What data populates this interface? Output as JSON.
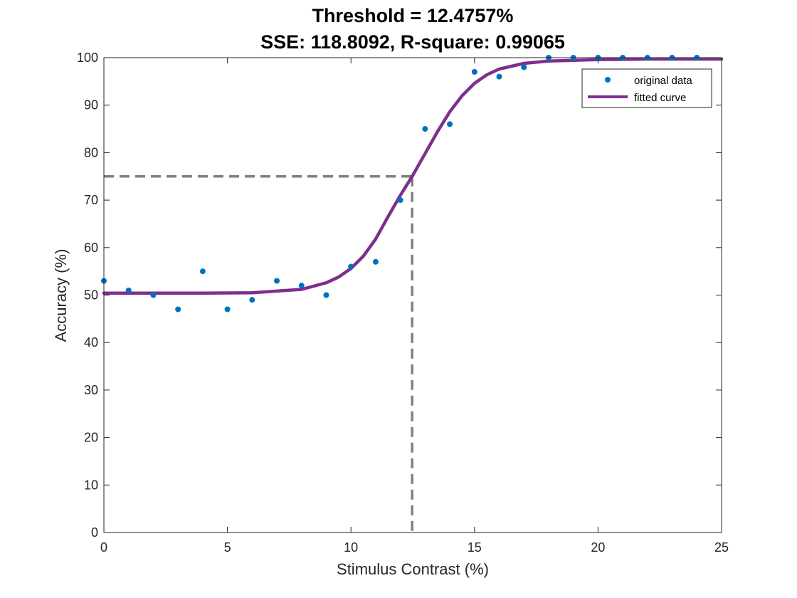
{
  "chart_data": {
    "type": "scatter",
    "title": "Threshold = 12.4757%",
    "subtitle": "SSE: 118.8092, R-square: 0.99065",
    "xlabel": "Stimulus Contrast (%)",
    "ylabel": "Accuracy (%)",
    "xlim": [
      0,
      25
    ],
    "ylim": [
      0,
      100
    ],
    "xticks": [
      0,
      5,
      10,
      15,
      20,
      25
    ],
    "yticks": [
      0,
      10,
      20,
      30,
      40,
      50,
      60,
      70,
      80,
      90,
      100
    ],
    "grid": false,
    "legend_position": "top-right",
    "series": [
      {
        "name": "original data",
        "kind": "markers",
        "color": "#0072BD",
        "x": [
          0,
          1,
          2,
          3,
          4,
          5,
          6,
          7,
          8,
          9,
          10,
          11,
          12,
          13,
          14,
          15,
          16,
          17,
          18,
          19,
          20,
          21,
          22,
          23,
          24
        ],
        "y": [
          53,
          51,
          50,
          47,
          55,
          47,
          49,
          53,
          52,
          50,
          56,
          57,
          70,
          85,
          86,
          97,
          96,
          98,
          100,
          100,
          100,
          100,
          100,
          100,
          100
        ]
      },
      {
        "name": "fitted curve",
        "kind": "line",
        "color": "#7E2F8E",
        "x": [
          0,
          2,
          4,
          6,
          8,
          9,
          9.5,
          10,
          10.5,
          11,
          11.5,
          12,
          12.5,
          13,
          13.5,
          14,
          14.5,
          15,
          15.5,
          16,
          17,
          18,
          20,
          22,
          25
        ],
        "y": [
          50.4,
          50.4,
          50.4,
          50.5,
          51.2,
          52.6,
          53.8,
          55.6,
          58.2,
          61.8,
          66.5,
          71.0,
          75.2,
          79.8,
          84.4,
          88.6,
          92.0,
          94.6,
          96.4,
          97.6,
          98.8,
          99.3,
          99.6,
          99.7,
          99.7
        ]
      }
    ],
    "threshold_guide": {
      "x": 12.4757,
      "y": 75,
      "color": "#808080"
    }
  }
}
